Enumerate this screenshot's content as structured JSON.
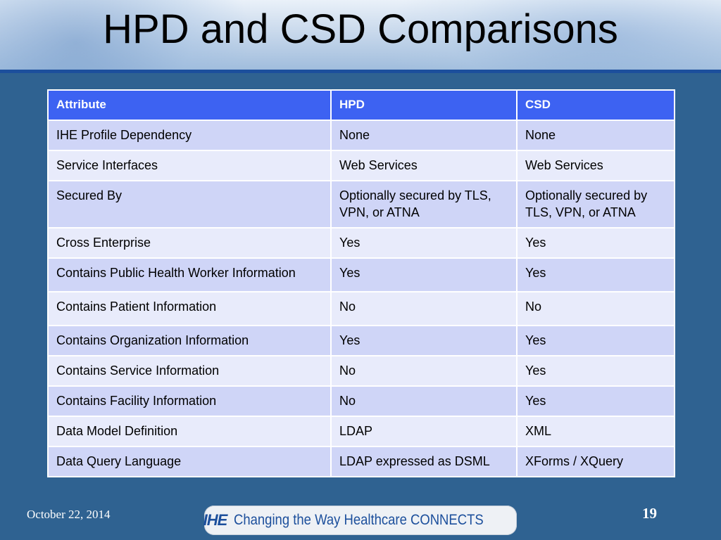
{
  "slide": {
    "title": "HPD and CSD Comparisons",
    "date": "October 22, 2014",
    "page_number": "19",
    "logo": {
      "mark": "IHE",
      "tagline": "Changing the Way Healthcare CONNECTS"
    }
  },
  "table": {
    "headers": [
      "Attribute",
      "HPD",
      "CSD"
    ],
    "rows": [
      [
        "IHE Profile Dependency",
        "None",
        "None"
      ],
      [
        "Service Interfaces",
        "Web Services",
        "Web Services"
      ],
      [
        "Secured By",
        "Optionally secured by TLS, VPN, or ATNA",
        "Optionally secured by TLS, VPN, or ATNA"
      ],
      [
        "Cross Enterprise",
        "Yes",
        "Yes"
      ],
      [
        "Contains Public Health Worker Information",
        "Yes",
        "Yes"
      ],
      [
        "Contains Patient Information",
        "No",
        "No"
      ],
      [
        "Contains Organization Information",
        "Yes",
        "Yes"
      ],
      [
        "Contains Service Information",
        "No",
        "Yes"
      ],
      [
        "Contains Facility Information",
        "No",
        "Yes"
      ],
      [
        "Data Model Definition",
        "LDAP",
        "XML"
      ],
      [
        "Data Query Language",
        "LDAP expressed as DSML",
        "XForms / XQuery"
      ]
    ]
  }
}
